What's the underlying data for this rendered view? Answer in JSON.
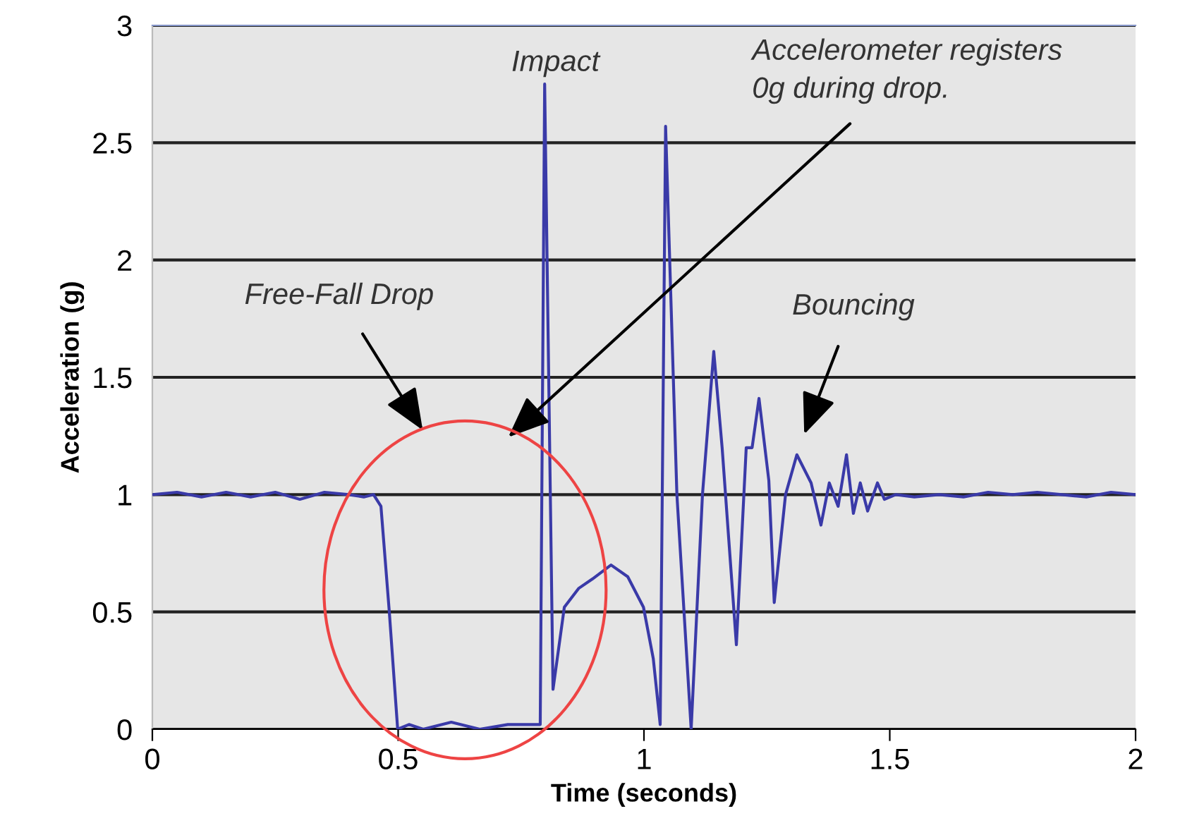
{
  "chart_data": {
    "type": "line",
    "xlabel": "Time (seconds)",
    "ylabel": "Acceleration (g)",
    "annotations": [
      "Impact",
      "Accelerometer registers\n0g during drop.",
      "Free-Fall Drop",
      "Bouncing"
    ],
    "series": [
      {
        "color": "#3a3aa8",
        "x": [
          0,
          0.05,
          0.1,
          0.15,
          0.2,
          0.25,
          0.3,
          0.35,
          0.4,
          0.43,
          0.45,
          0.465,
          0.482,
          0.499,
          0.522,
          0.551,
          0.608,
          0.666,
          0.723,
          0.789,
          0.798,
          0.815,
          0.838,
          0.867,
          0.895,
          0.933,
          0.967,
          0.999,
          1.019,
          1.033,
          1.044,
          1.067,
          1.096,
          1.119,
          1.142,
          1.159,
          1.188,
          1.208,
          1.22,
          1.234,
          1.254,
          1.265,
          1.288,
          1.311,
          1.34,
          1.36,
          1.377,
          1.395,
          1.412,
          1.426,
          1.44,
          1.455,
          1.475,
          1.489,
          1.512,
          1.55,
          1.6,
          1.65,
          1.7,
          1.75,
          1.8,
          1.85,
          1.9,
          1.95,
          2.0
        ],
        "values": [
          1.0,
          1.01,
          0.99,
          1.01,
          0.99,
          1.01,
          0.98,
          1.01,
          1.0,
          0.99,
          1.0,
          0.95,
          0.5,
          0.0,
          0.02,
          0.0,
          0.03,
          0.0,
          0.02,
          0.02,
          2.75,
          0.17,
          0.52,
          0.6,
          0.64,
          0.7,
          0.65,
          0.52,
          0.3,
          0.02,
          2.57,
          1.0,
          0.0,
          1.0,
          1.61,
          1.2,
          0.36,
          1.2,
          1.2,
          1.41,
          1.06,
          0.54,
          1.0,
          1.17,
          1.05,
          0.87,
          1.05,
          0.95,
          1.17,
          0.92,
          1.05,
          0.93,
          1.05,
          0.98,
          1.0,
          0.99,
          1.0,
          0.99,
          1.01,
          1.0,
          1.01,
          1.0,
          0.99,
          1.01,
          1.0
        ]
      }
    ],
    "xlim": [
      0,
      2
    ],
    "ylim": [
      0,
      3
    ],
    "xticks": [
      0,
      0.5,
      1,
      1.5,
      2
    ],
    "yticks": [
      0,
      0.5,
      1,
      1.5,
      2,
      2.5,
      3
    ],
    "grid": "y",
    "legend": false
  }
}
